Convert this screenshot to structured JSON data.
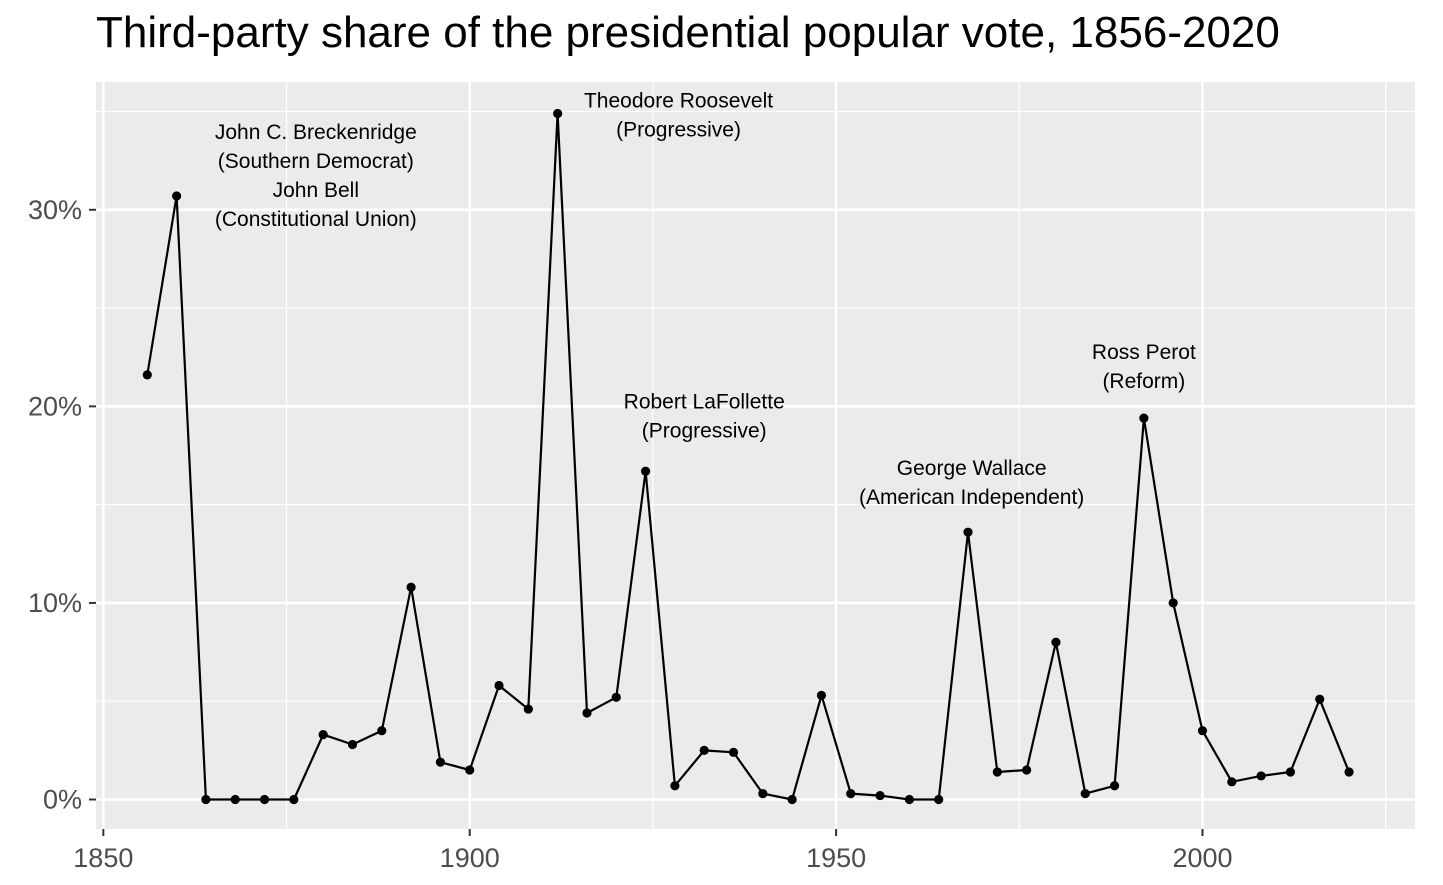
{
  "chart_data": {
    "type": "line",
    "title": "Third-party share of the presidential popular vote, 1856-2020",
    "xlabel": "",
    "ylabel": "",
    "xlim": [
      1849,
      2029
    ],
    "ylim": [
      -1.5,
      36.5
    ],
    "grid": true,
    "x_ticks": [
      {
        "value": 1850,
        "label": "1850"
      },
      {
        "value": 1900,
        "label": "1900"
      },
      {
        "value": 1950,
        "label": "1950"
      },
      {
        "value": 2000,
        "label": "2000"
      }
    ],
    "x_minor_ticks": [
      1875,
      1925,
      1975,
      2025
    ],
    "y_ticks": [
      {
        "value": 0,
        "label": "0%"
      },
      {
        "value": 10,
        "label": "10%"
      },
      {
        "value": 20,
        "label": "20%"
      },
      {
        "value": 30,
        "label": "30%"
      }
    ],
    "y_minor_ticks": [
      5,
      15,
      25,
      35
    ],
    "series": [
      {
        "color": "#000000",
        "x": [
          1856,
          1860,
          1864,
          1868,
          1872,
          1876,
          1880,
          1884,
          1888,
          1892,
          1896,
          1900,
          1904,
          1908,
          1912,
          1916,
          1920,
          1924,
          1928,
          1932,
          1936,
          1940,
          1944,
          1948,
          1952,
          1956,
          1960,
          1964,
          1968,
          1972,
          1976,
          1980,
          1984,
          1988,
          1992,
          1996,
          2000,
          2004,
          2008,
          2012,
          2016,
          2020
        ],
        "y": [
          21.6,
          30.7,
          0.0,
          0.0,
          0.0,
          0.0,
          3.3,
          2.8,
          3.5,
          10.8,
          1.9,
          1.5,
          5.8,
          4.6,
          34.9,
          4.4,
          5.2,
          16.7,
          0.7,
          2.5,
          2.4,
          0.3,
          0.0,
          5.3,
          0.3,
          0.2,
          0.0,
          0.0,
          13.6,
          1.4,
          1.5,
          8.0,
          0.3,
          0.7,
          19.4,
          10.0,
          3.5,
          0.9,
          1.2,
          1.4,
          5.1,
          1.4
        ]
      }
    ],
    "annotations": [
      {
        "lines": [
          "John C. Breckenridge",
          "(Southern Democrat)",
          "John Bell",
          "(Constitutional Union)"
        ],
        "x": 1879,
        "y": 33.6
      },
      {
        "lines": [
          "Theodore Roosevelt",
          "(Progressive)"
        ],
        "x": 1928.5,
        "y": 35.2
      },
      {
        "lines": [
          "Robert LaFollette",
          "(Progressive)"
        ],
        "x": 1932,
        "y": 19.9
      },
      {
        "lines": [
          "George Wallace",
          "(American Independent)"
        ],
        "x": 1968.5,
        "y": 16.5
      },
      {
        "lines": [
          "Ross Perot",
          "(Reform)"
        ],
        "x": 1992,
        "y": 22.4
      }
    ]
  }
}
